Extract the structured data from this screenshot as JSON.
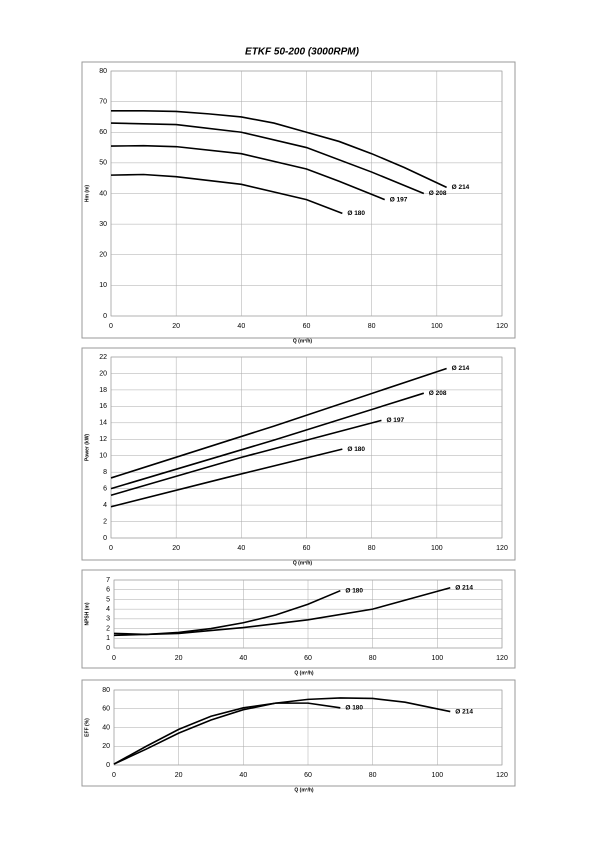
{
  "title": "ETKF 50-200 (3000RPM)",
  "chart_data": [
    {
      "type": "line",
      "x_label": "Q (m³/h)",
      "y_label": "Hm (m)",
      "xlim": [
        0,
        120
      ],
      "ylim": [
        0,
        80
      ],
      "xticks": [
        0,
        20,
        40,
        60,
        80,
        100,
        120
      ],
      "yticks": [
        0,
        10,
        20,
        30,
        40,
        50,
        60,
        70,
        80
      ],
      "grid": true,
      "series": [
        {
          "name": "Ø 214",
          "color": "#000000",
          "x": [
            0,
            10,
            20,
            30,
            40,
            50,
            60,
            70,
            80,
            90,
            103
          ],
          "values": [
            67,
            67,
            66.8,
            66,
            65,
            63,
            60,
            57,
            53,
            48.5,
            42
          ]
        },
        {
          "name": "Ø 208",
          "color": "#000000",
          "x": [
            0,
            20,
            40,
            60,
            80,
            96
          ],
          "values": [
            63,
            62.5,
            60,
            55,
            47,
            40
          ]
        },
        {
          "name": "Ø 197",
          "color": "#000000",
          "x": [
            0,
            10,
            20,
            40,
            60,
            70,
            84
          ],
          "values": [
            55.5,
            55.6,
            55.3,
            53,
            48,
            44,
            38
          ]
        },
        {
          "name": "Ø 180",
          "color": "#000000",
          "x": [
            0,
            10,
            20,
            40,
            60,
            71
          ],
          "values": [
            46,
            46.2,
            45.5,
            43,
            38,
            33.5
          ]
        }
      ]
    },
    {
      "type": "line",
      "x_label": "Q (m³/h)",
      "y_label": "Power (kW)",
      "xlim": [
        0,
        120
      ],
      "ylim": [
        0,
        22
      ],
      "xticks": [
        0,
        20,
        40,
        60,
        80,
        100,
        120
      ],
      "yticks": [
        0,
        2,
        4,
        6,
        8,
        10,
        12,
        14,
        16,
        18,
        20,
        22
      ],
      "grid": true,
      "series": [
        {
          "name": "Ø 214",
          "color": "#000000",
          "x": [
            0,
            50,
            103
          ],
          "values": [
            7.3,
            13.6,
            20.6
          ]
        },
        {
          "name": "Ø 208",
          "color": "#000000",
          "x": [
            0,
            50,
            96
          ],
          "values": [
            6,
            11.9,
            17.6
          ]
        },
        {
          "name": "Ø 197",
          "color": "#000000",
          "x": [
            0,
            40,
            83
          ],
          "values": [
            5.2,
            9.8,
            14.3
          ]
        },
        {
          "name": "Ø 180",
          "color": "#000000",
          "x": [
            0,
            35,
            71
          ],
          "values": [
            3.8,
            7.3,
            10.8
          ]
        }
      ]
    },
    {
      "type": "line",
      "x_label": "Q (m³/h)",
      "y_label": "NPSH (m)",
      "xlim": [
        0,
        120
      ],
      "ylim": [
        0,
        7
      ],
      "xticks": [
        0,
        20,
        40,
        60,
        80,
        100,
        120
      ],
      "yticks": [
        0,
        1,
        2,
        3,
        4,
        5,
        6,
        7
      ],
      "grid": true,
      "series": [
        {
          "name": "Ø 180",
          "color": "#000000",
          "x": [
            0,
            10,
            20,
            30,
            40,
            50,
            60,
            70
          ],
          "values": [
            1.5,
            1.4,
            1.6,
            2.0,
            2.6,
            3.4,
            4.5,
            5.9
          ]
        },
        {
          "name": "Ø 214",
          "color": "#000000",
          "x": [
            0,
            20,
            40,
            60,
            80,
            104
          ],
          "values": [
            1.3,
            1.5,
            2.1,
            2.9,
            4.0,
            6.2
          ]
        }
      ]
    },
    {
      "type": "line",
      "x_label": "Q (m³/h)",
      "y_label": "EFF (%)",
      "xlim": [
        0,
        120
      ],
      "ylim": [
        0,
        80
      ],
      "xticks": [
        0,
        20,
        40,
        60,
        80,
        100,
        120
      ],
      "yticks": [
        0,
        20,
        40,
        60,
        80
      ],
      "grid": true,
      "series": [
        {
          "name": "Ø 180",
          "color": "#000000",
          "x": [
            0,
            10,
            20,
            30,
            40,
            50,
            60,
            70
          ],
          "values": [
            1,
            20,
            38,
            52,
            61,
            66,
            66,
            61
          ]
        },
        {
          "name": "Ø 214",
          "color": "#000000",
          "x": [
            0,
            10,
            20,
            30,
            40,
            50,
            60,
            70,
            80,
            90,
            104
          ],
          "values": [
            1,
            17,
            34,
            48,
            59,
            66,
            70,
            71.5,
            71,
            67,
            57
          ]
        }
      ]
    }
  ]
}
